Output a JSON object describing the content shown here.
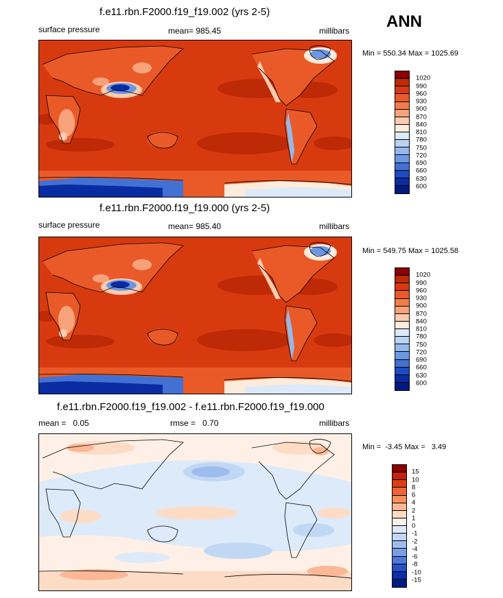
{
  "season": "ANN",
  "panels": [
    {
      "title": "f.e11.rbn.F2000.f19_f19.002 (yrs 2-5)",
      "left_label": "surface pressure",
      "center_label": "mean= 985.45",
      "right_label": "millibars",
      "minmax": "Min = 550.34 Max = 1025.69",
      "levels": [
        "1020",
        "990",
        "960",
        "930",
        "900",
        "870",
        "840",
        "810",
        "780",
        "750",
        "720",
        "690",
        "660",
        "630",
        "600"
      ],
      "colors": [
        "#8b0000",
        "#bd2a05",
        "#d83a10",
        "#ea5a28",
        "#f27d4a",
        "#f8a27c",
        "#fccbb0",
        "#fdebdc",
        "#dbe9f8",
        "#b9d3f3",
        "#95b9ec",
        "#6c97e2",
        "#4271d4",
        "#1f4bc2",
        "#0a2ca3",
        "#001a80"
      ]
    },
    {
      "title": "f.e11.rbn.F2000.f19_f19.000 (yrs 2-5)",
      "left_label": "surface pressure",
      "center_label": "mean= 985.40",
      "right_label": "millibars",
      "minmax": "Min = 549.75 Max = 1025.58",
      "levels": [
        "1020",
        "990",
        "960",
        "930",
        "900",
        "870",
        "840",
        "810",
        "780",
        "750",
        "720",
        "690",
        "660",
        "630",
        "600"
      ],
      "colors": [
        "#8b0000",
        "#bd2a05",
        "#d83a10",
        "#ea5a28",
        "#f27d4a",
        "#f8a27c",
        "#fccbb0",
        "#fdebdc",
        "#dbe9f8",
        "#b9d3f3",
        "#95b9ec",
        "#6c97e2",
        "#4271d4",
        "#1f4bc2",
        "#0a2ca3",
        "#001a80"
      ]
    },
    {
      "title": "f.e11.rbn.F2000.f19_f19.002 - f.e11.rbn.F2000.f19_f19.000",
      "left_label": "mean =   0.05",
      "center_label": "rmse =   0.70",
      "right_label": "millibars",
      "minmax": "Min =  -3.45 Max =   3.49",
      "levels": [
        "15",
        "10",
        "8",
        "6",
        "4",
        "2",
        "1",
        "0",
        "-1",
        "-2",
        "-4",
        "-6",
        "-8",
        "-10",
        "-15"
      ],
      "colors": [
        "#8b0000",
        "#c2250a",
        "#dc3e16",
        "#ee6434",
        "#f6905f",
        "#fbb896",
        "#fddcc6",
        "#fef0e6",
        "#ddeafa",
        "#c1d8f5",
        "#9ebdee",
        "#7a9de4",
        "#4f78d8",
        "#2750c4",
        "#0b2fa6",
        "#001c80"
      ]
    }
  ]
}
